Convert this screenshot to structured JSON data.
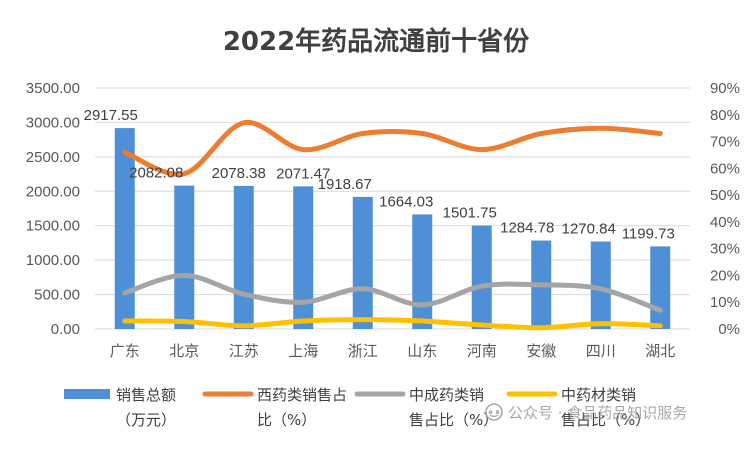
{
  "chart_data": {
    "type": "bar+line",
    "title": "2022年药品流通前十省份",
    "categories": [
      "广东",
      "北京",
      "江苏",
      "上海",
      "浙江",
      "山东",
      "河南",
      "安徽",
      "四川",
      "湖北"
    ],
    "y_left": {
      "lim": [
        0,
        3500
      ],
      "ticks": [
        "0.00",
        "500.00",
        "1000.00",
        "1500.00",
        "2000.00",
        "2500.00",
        "3000.00",
        "3500.00"
      ]
    },
    "y_right": {
      "lim": [
        0,
        90
      ],
      "ticks": [
        "0%",
        "10%",
        "20%",
        "30%",
        "40%",
        "50%",
        "60%",
        "70%",
        "80%",
        "90%"
      ]
    },
    "series": [
      {
        "name": "销售总额（万元）",
        "legend_lines": [
          "销售总额",
          "（万元）"
        ],
        "type": "bar",
        "axis": "left",
        "color": "#4e8fd6",
        "values": [
          2917.55,
          2082.08,
          2078.38,
          2071.47,
          1918.67,
          1664.03,
          1501.75,
          1284.78,
          1270.84,
          1199.73
        ],
        "labels": [
          "2917.55",
          "2082.08",
          "2078.38",
          "2071.47",
          "1918.67",
          "1664.03",
          "1501.75",
          "1284.78",
          "1270.84",
          "1199.73"
        ]
      },
      {
        "name": "西药类销售占比（%）",
        "legend_lines": [
          "西药类销售占",
          "比（%）"
        ],
        "type": "line",
        "axis": "right",
        "color": "#ed7d31",
        "values": [
          66,
          58,
          77,
          67,
          73,
          73,
          67,
          73,
          75,
          73
        ]
      },
      {
        "name": "中成药类销售占比（%）",
        "legend_lines": [
          "中成药类销",
          "售占比（%）"
        ],
        "type": "line",
        "axis": "right",
        "color": "#a5a5a5",
        "values": [
          13.5,
          20,
          13,
          10,
          15,
          9,
          16,
          16.5,
          15,
          7
        ]
      },
      {
        "name": "中药材类销售占比（%）",
        "legend_lines": [
          "中药材类销",
          "售占比（%）"
        ],
        "type": "line",
        "axis": "right",
        "color": "#ffc000",
        "values": [
          3,
          2.8,
          1.2,
          3,
          3.5,
          3,
          1.5,
          0.5,
          2,
          1.2
        ]
      }
    ],
    "legend_position": "bottom",
    "grid": true
  },
  "watermark": "公众号 · 食品药品知识服务"
}
